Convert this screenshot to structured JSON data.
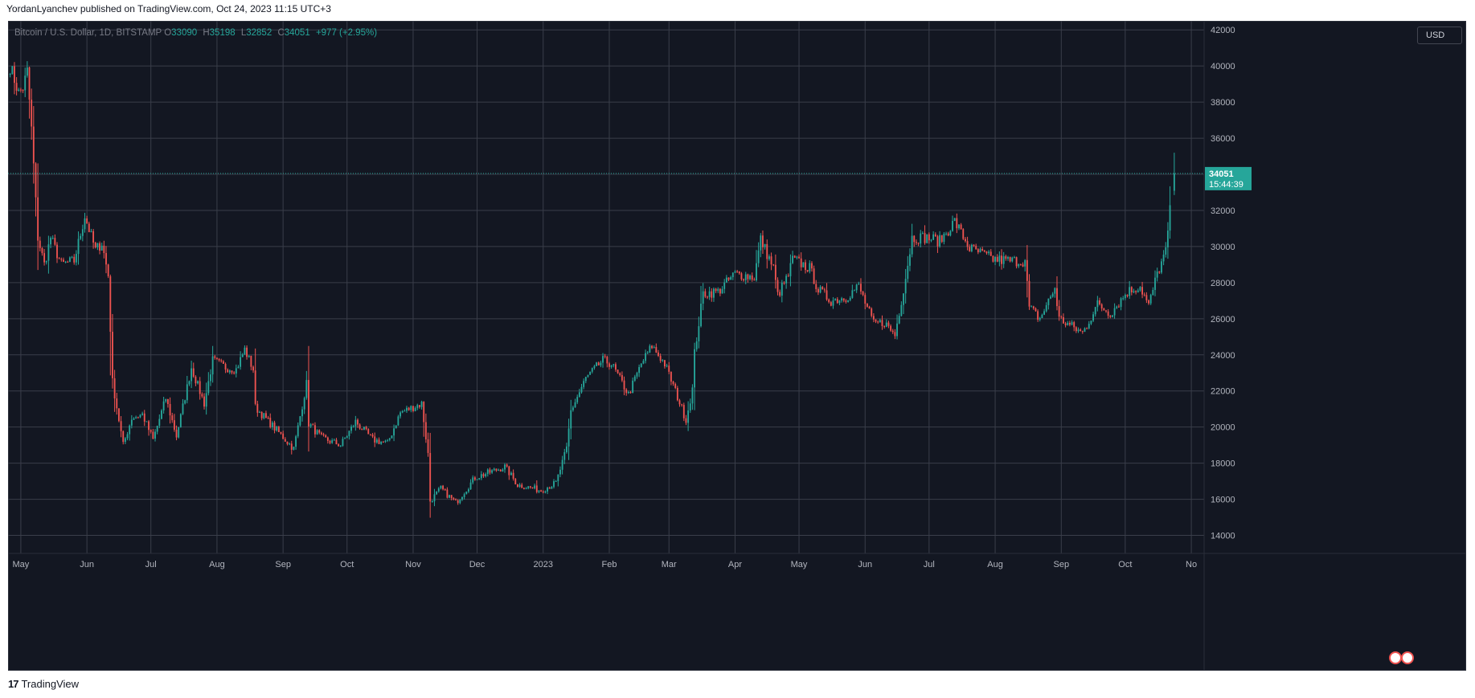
{
  "header": {
    "published": "YordanLyanchev published on TradingView.com, Oct 24, 2023 11:15 UTC+3"
  },
  "legend": {
    "symbol": "Bitcoin / U.S. Dollar, 1D, BITSTAMP",
    "o_label": "O",
    "o_value": "33090",
    "h_label": "H",
    "h_value": "35198",
    "l_label": "L",
    "l_value": "32852",
    "c_label": "C",
    "c_value": "34051",
    "change": "+977 (+2.95%)"
  },
  "currency_button": "USD",
  "price_tag": {
    "price": "34051",
    "countdown": "15:44:39"
  },
  "footer": {
    "brand": "TradingView",
    "logo_mark": "17"
  },
  "colors": {
    "background": "#131722",
    "grid": "#3a3e4a",
    "up": "#26a69a",
    "down": "#ef5350",
    "axis_text": "#b2b5be"
  },
  "chart_data": {
    "type": "candlestick",
    "title": "Bitcoin / U.S. Dollar, 1D, BITSTAMP",
    "ylim": [
      13000,
      42500
    ],
    "y_ticks": [
      14000,
      16000,
      18000,
      20000,
      22000,
      24000,
      26000,
      28000,
      30000,
      32000,
      34000,
      36000,
      38000,
      40000,
      42000
    ],
    "x_ticks": [
      {
        "label": "May",
        "date": "2022-05-01"
      },
      {
        "label": "Jun",
        "date": "2022-06-01"
      },
      {
        "label": "Jul",
        "date": "2022-07-01"
      },
      {
        "label": "Aug",
        "date": "2022-08-01"
      },
      {
        "label": "Sep",
        "date": "2022-09-01"
      },
      {
        "label": "Oct",
        "date": "2022-10-01"
      },
      {
        "label": "Nov",
        "date": "2022-11-01"
      },
      {
        "label": "Dec",
        "date": "2022-12-01"
      },
      {
        "label": "2023",
        "date": "2023-01-01"
      },
      {
        "label": "Feb",
        "date": "2023-02-01"
      },
      {
        "label": "Mar",
        "date": "2023-03-01"
      },
      {
        "label": "Apr",
        "date": "2023-04-01"
      },
      {
        "label": "May",
        "date": "2023-05-01"
      },
      {
        "label": "Jun",
        "date": "2023-06-01"
      },
      {
        "label": "Jul",
        "date": "2023-07-01"
      },
      {
        "label": "Aug",
        "date": "2023-08-01"
      },
      {
        "label": "Sep",
        "date": "2023-09-01"
      },
      {
        "label": "Oct",
        "date": "2023-10-01"
      },
      {
        "label": "No",
        "date": "2023-11-01"
      }
    ],
    "last_price": 34051,
    "last_candle": {
      "date": "2023-10-24",
      "open": 33090,
      "high": 35198,
      "low": 32852,
      "close": 34051
    },
    "close_path": [
      [
        "2022-04-26",
        40000
      ],
      [
        "2022-04-30",
        38500
      ],
      [
        "2022-05-02",
        38800
      ],
      [
        "2022-05-04",
        39700
      ],
      [
        "2022-05-06",
        36500
      ],
      [
        "2022-05-09",
        30500
      ],
      [
        "2022-05-12",
        29000
      ],
      [
        "2022-05-15",
        30500
      ],
      [
        "2022-05-20",
        29000
      ],
      [
        "2022-05-26",
        29200
      ],
      [
        "2022-05-31",
        31700
      ],
      [
        "2022-06-05",
        29800
      ],
      [
        "2022-06-08",
        30200
      ],
      [
        "2022-06-11",
        28400
      ],
      [
        "2022-06-13",
        22500
      ],
      [
        "2022-06-18",
        19000
      ],
      [
        "2022-06-22",
        20500
      ],
      [
        "2022-06-27",
        20700
      ],
      [
        "2022-07-02",
        19300
      ],
      [
        "2022-07-08",
        21600
      ],
      [
        "2022-07-13",
        19500
      ],
      [
        "2022-07-20",
        23300
      ],
      [
        "2022-07-26",
        21300
      ],
      [
        "2022-07-30",
        23700
      ],
      [
        "2022-08-05",
        23300
      ],
      [
        "2022-08-10",
        23200
      ],
      [
        "2022-08-14",
        24300
      ],
      [
        "2022-08-18",
        23200
      ],
      [
        "2022-08-19",
        21100
      ],
      [
        "2022-08-26",
        20200
      ],
      [
        "2022-09-06",
        18800
      ],
      [
        "2022-09-12",
        22400
      ],
      [
        "2022-09-13",
        20200
      ],
      [
        "2022-09-19",
        19400
      ],
      [
        "2022-09-28",
        19000
      ],
      [
        "2022-10-05",
        20300
      ],
      [
        "2022-10-13",
        19300
      ],
      [
        "2022-10-20",
        19100
      ],
      [
        "2022-10-26",
        20800
      ],
      [
        "2022-11-05",
        21300
      ],
      [
        "2022-11-08",
        18500
      ],
      [
        "2022-11-09",
        15900
      ],
      [
        "2022-11-14",
        16600
      ],
      [
        "2022-11-21",
        15800
      ],
      [
        "2022-11-30",
        17200
      ],
      [
        "2022-12-14",
        17800
      ],
      [
        "2022-12-20",
        16800
      ],
      [
        "2022-12-31",
        16500
      ],
      [
        "2023-01-07",
        16900
      ],
      [
        "2023-01-12",
        18800
      ],
      [
        "2023-01-14",
        20900
      ],
      [
        "2023-01-21",
        22700
      ],
      [
        "2023-01-29",
        23700
      ],
      [
        "2023-02-02",
        23500
      ],
      [
        "2023-02-10",
        21800
      ],
      [
        "2023-02-16",
        23500
      ],
      [
        "2023-02-21",
        24500
      ],
      [
        "2023-02-27",
        23500
      ],
      [
        "2023-03-03",
        22300
      ],
      [
        "2023-03-09",
        20400
      ],
      [
        "2023-03-12",
        22100
      ],
      [
        "2023-03-13",
        24100
      ],
      [
        "2023-03-17",
        27400
      ],
      [
        "2023-03-24",
        27500
      ],
      [
        "2023-04-01",
        28500
      ],
      [
        "2023-04-10",
        28300
      ],
      [
        "2023-04-13",
        30400
      ],
      [
        "2023-04-19",
        28800
      ],
      [
        "2023-04-21",
        27300
      ],
      [
        "2023-04-26",
        28400
      ],
      [
        "2023-04-28",
        29300
      ],
      [
        "2023-05-06",
        28800
      ],
      [
        "2023-05-10",
        27600
      ],
      [
        "2023-05-16",
        27000
      ],
      [
        "2023-05-23",
        27200
      ],
      [
        "2023-05-29",
        27800
      ],
      [
        "2023-06-05",
        25700
      ],
      [
        "2023-06-10",
        25800
      ],
      [
        "2023-06-15",
        25100
      ],
      [
        "2023-06-20",
        28300
      ],
      [
        "2023-06-23",
        30500
      ],
      [
        "2023-06-30",
        30500
      ],
      [
        "2023-07-06",
        30300
      ],
      [
        "2023-07-13",
        31400
      ],
      [
        "2023-07-20",
        29900
      ],
      [
        "2023-07-31",
        29300
      ],
      [
        "2023-08-08",
        29200
      ],
      [
        "2023-08-15",
        29200
      ],
      [
        "2023-08-17",
        26600
      ],
      [
        "2023-08-22",
        26000
      ],
      [
        "2023-08-29",
        27700
      ],
      [
        "2023-08-31",
        26000
      ],
      [
        "2023-09-11",
        25200
      ],
      [
        "2023-09-18",
        26800
      ],
      [
        "2023-09-24",
        26300
      ],
      [
        "2023-10-02",
        27500
      ],
      [
        "2023-10-08",
        27800
      ],
      [
        "2023-10-12",
        26700
      ],
      [
        "2023-10-16",
        28500
      ],
      [
        "2023-10-20",
        29700
      ],
      [
        "2023-10-23",
        33090
      ]
    ]
  }
}
